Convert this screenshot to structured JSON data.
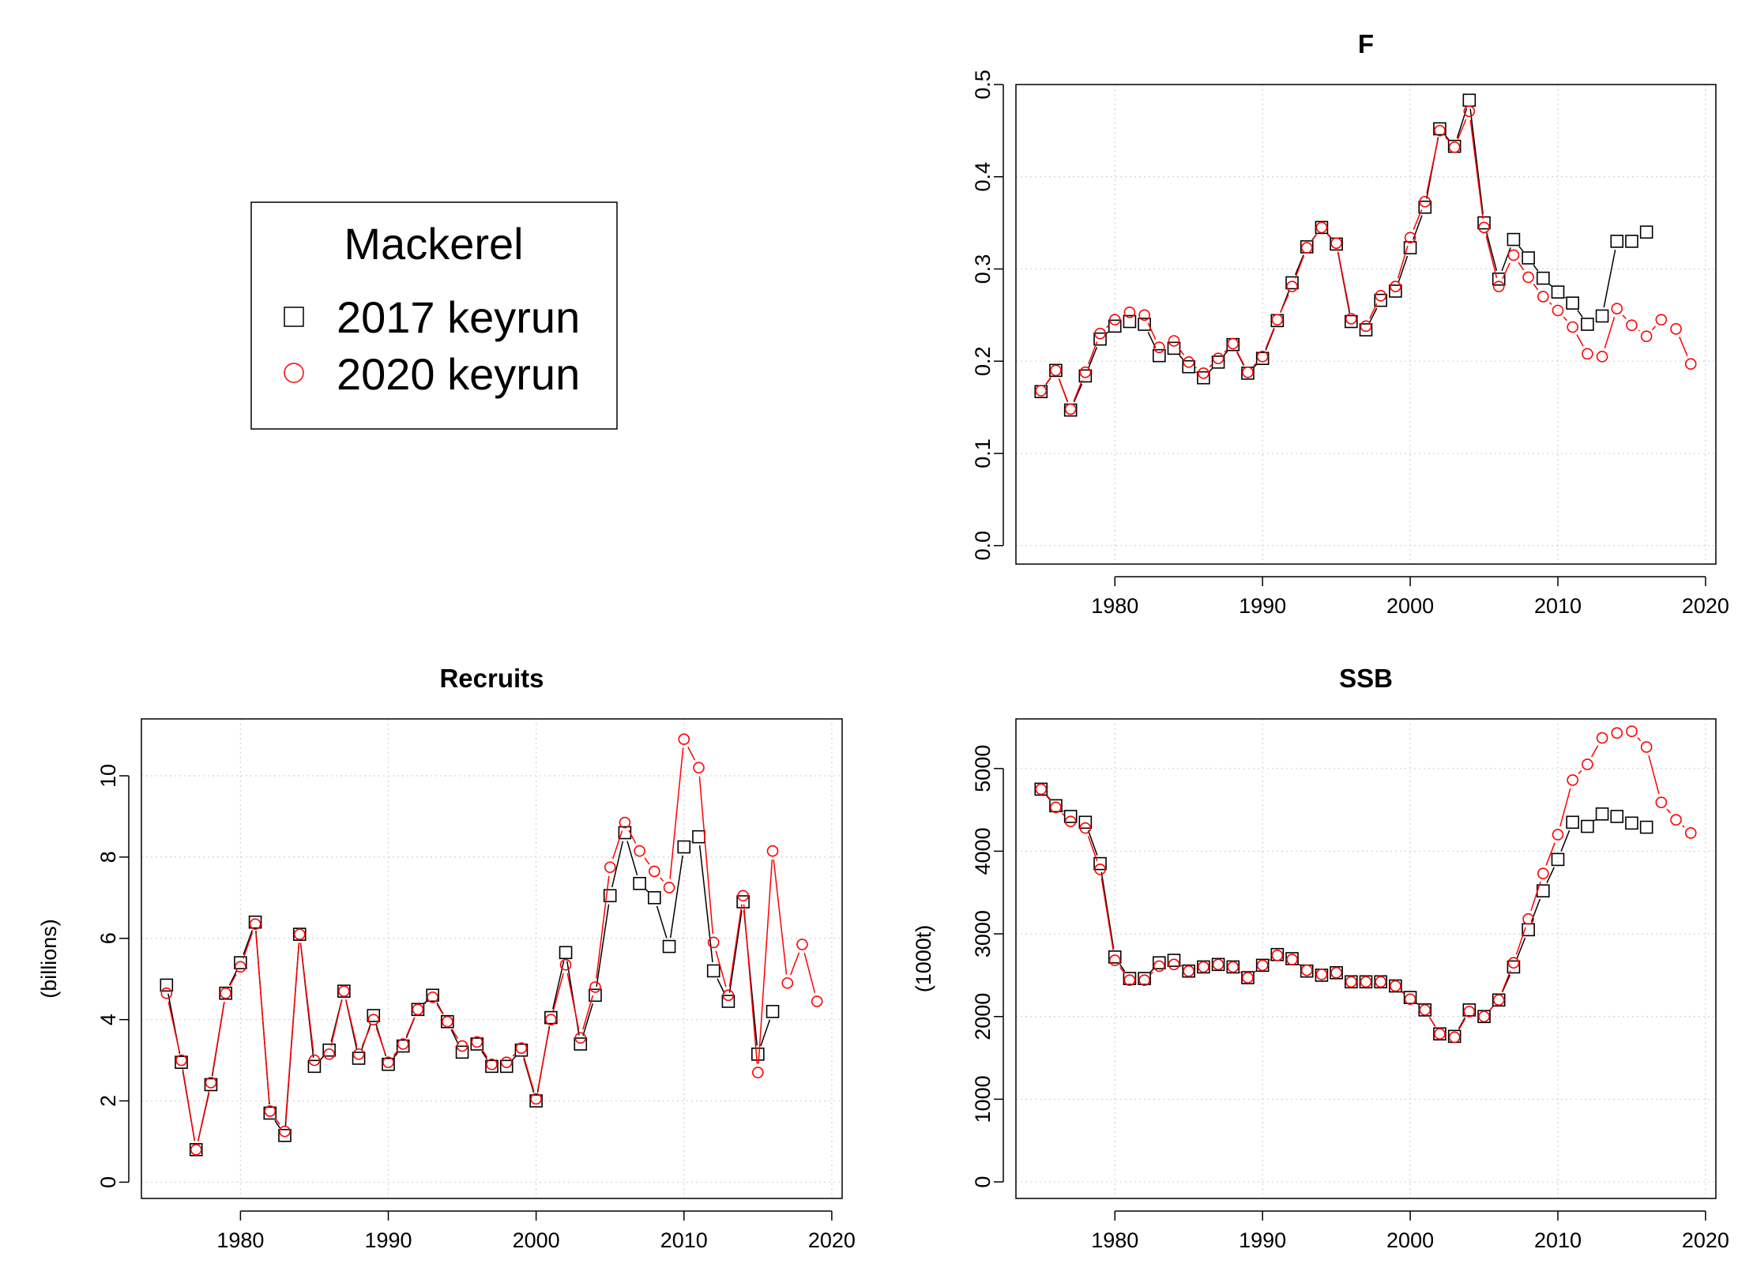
{
  "legend": {
    "title": "Mackerel",
    "entries": [
      {
        "label": "2017 keyrun",
        "symbol": "square",
        "color": "#000000"
      },
      {
        "label": "2020 keyrun",
        "symbol": "circle",
        "color": "#ff0000"
      }
    ]
  },
  "chart_data": [
    {
      "id": "F",
      "type": "line",
      "title": "F",
      "xlabel": "",
      "ylabel": "",
      "xlim": [
        1973.3,
        2020.7
      ],
      "ylim": [
        -0.02,
        0.5
      ],
      "xticks": [
        1980,
        1990,
        2000,
        2010,
        2020
      ],
      "yticks": [
        0.0,
        0.1,
        0.2,
        0.3,
        0.4,
        0.5
      ],
      "ytick_labels": [
        "0.0",
        "0.1",
        "0.2",
        "0.3",
        "0.4",
        "0.5"
      ],
      "grid": true,
      "series": [
        {
          "name": "2017 keyrun",
          "color": "#000000",
          "symbol": "square",
          "x": [
            1975,
            1976,
            1977,
            1978,
            1979,
            1980,
            1981,
            1982,
            1983,
            1984,
            1985,
            1986,
            1987,
            1988,
            1989,
            1990,
            1991,
            1992,
            1993,
            1994,
            1995,
            1996,
            1997,
            1998,
            1999,
            2000,
            2001,
            2002,
            2003,
            2004,
            2005,
            2006,
            2007,
            2008,
            2009,
            2010,
            2011,
            2012,
            2013,
            2014,
            2015,
            2016
          ],
          "values": [
            0.167,
            0.19,
            0.147,
            0.184,
            0.224,
            0.238,
            0.243,
            0.24,
            0.206,
            0.214,
            0.194,
            0.182,
            0.199,
            0.218,
            0.187,
            0.203,
            0.244,
            0.285,
            0.324,
            0.345,
            0.327,
            0.243,
            0.234,
            0.266,
            0.276,
            0.323,
            0.367,
            0.452,
            0.433,
            0.483,
            0.35,
            0.289,
            0.332,
            0.312,
            0.29,
            0.275,
            0.263,
            0.24,
            0.249,
            0.33,
            0.33,
            0.34
          ]
        },
        {
          "name": "2020 keyrun",
          "color": "#ff0000",
          "symbol": "circle",
          "x": [
            1975,
            1976,
            1977,
            1978,
            1979,
            1980,
            1981,
            1982,
            1983,
            1984,
            1985,
            1986,
            1987,
            1988,
            1989,
            1990,
            1991,
            1992,
            1993,
            1994,
            1995,
            1996,
            1997,
            1998,
            1999,
            2000,
            2001,
            2002,
            2003,
            2004,
            2005,
            2006,
            2007,
            2008,
            2009,
            2010,
            2011,
            2012,
            2013,
            2014,
            2015,
            2016,
            2017,
            2018,
            2019
          ],
          "values": [
            0.168,
            0.19,
            0.148,
            0.188,
            0.23,
            0.245,
            0.253,
            0.25,
            0.215,
            0.222,
            0.199,
            0.187,
            0.203,
            0.219,
            0.188,
            0.205,
            0.245,
            0.281,
            0.323,
            0.345,
            0.328,
            0.246,
            0.238,
            0.271,
            0.281,
            0.334,
            0.373,
            0.45,
            0.432,
            0.471,
            0.345,
            0.281,
            0.315,
            0.291,
            0.27,
            0.255,
            0.237,
            0.208,
            0.205,
            0.257,
            0.239,
            0.227,
            0.245,
            0.235,
            0.197
          ]
        }
      ]
    },
    {
      "id": "Recruits",
      "type": "line",
      "title": "Recruits",
      "xlabel": "",
      "ylabel": "(billions)",
      "xlim": [
        1973.3,
        2020.7
      ],
      "ylim": [
        -0.4,
        11.4
      ],
      "xticks": [
        1980,
        1990,
        2000,
        2010,
        2020
      ],
      "yticks": [
        0,
        2,
        4,
        6,
        8,
        10
      ],
      "ytick_labels": [
        "0",
        "2",
        "4",
        "6",
        "8",
        "10"
      ],
      "grid": true,
      "series": [
        {
          "name": "2017 keyrun",
          "color": "#000000",
          "symbol": "square",
          "x": [
            1975,
            1976,
            1977,
            1978,
            1979,
            1980,
            1981,
            1982,
            1983,
            1984,
            1985,
            1986,
            1987,
            1988,
            1989,
            1990,
            1991,
            1992,
            1993,
            1994,
            1995,
            1996,
            1997,
            1998,
            1999,
            2000,
            2001,
            2002,
            2003,
            2004,
            2005,
            2006,
            2007,
            2008,
            2009,
            2010,
            2011,
            2012,
            2013,
            2014,
            2015,
            2016
          ],
          "values": [
            4.85,
            2.95,
            0.8,
            2.4,
            4.65,
            5.4,
            6.4,
            1.7,
            1.15,
            6.1,
            2.85,
            3.25,
            4.7,
            3.05,
            4.1,
            2.9,
            3.35,
            4.25,
            4.6,
            3.95,
            3.2,
            3.4,
            2.85,
            2.85,
            3.25,
            2.0,
            4.05,
            5.65,
            3.4,
            4.6,
            7.05,
            8.6,
            7.35,
            7.0,
            5.8,
            8.25,
            8.5,
            5.2,
            4.45,
            6.9,
            3.15,
            4.2
          ]
        },
        {
          "name": "2020 keyrun",
          "color": "#ff0000",
          "symbol": "circle",
          "x": [
            1975,
            1976,
            1977,
            1978,
            1979,
            1980,
            1981,
            1982,
            1983,
            1984,
            1985,
            1986,
            1987,
            1988,
            1989,
            1990,
            1991,
            1992,
            1993,
            1994,
            1995,
            1996,
            1997,
            1998,
            1999,
            2000,
            2001,
            2002,
            2003,
            2004,
            2005,
            2006,
            2007,
            2008,
            2009,
            2010,
            2011,
            2012,
            2013,
            2014,
            2015,
            2016,
            2017,
            2018,
            2019
          ],
          "values": [
            4.65,
            3.0,
            0.8,
            2.45,
            4.65,
            5.3,
            6.35,
            1.75,
            1.25,
            6.1,
            3.0,
            3.15,
            4.7,
            3.15,
            4.0,
            2.95,
            3.4,
            4.25,
            4.55,
            3.95,
            3.35,
            3.45,
            2.9,
            2.95,
            3.3,
            2.05,
            4.0,
            5.35,
            3.55,
            4.8,
            7.75,
            8.85,
            8.15,
            7.65,
            7.25,
            10.9,
            10.2,
            5.9,
            4.6,
            7.05,
            2.7,
            8.15,
            4.9,
            5.85,
            4.45
          ]
        }
      ]
    },
    {
      "id": "SSB",
      "type": "line",
      "title": "SSB",
      "xlabel": "",
      "ylabel": "(1000t)",
      "xlim": [
        1973.3,
        2020.7
      ],
      "ylim": [
        -200,
        5600
      ],
      "xticks": [
        1980,
        1990,
        2000,
        2010,
        2020
      ],
      "yticks": [
        0,
        1000,
        2000,
        3000,
        4000,
        5000
      ],
      "ytick_labels": [
        "0",
        "1000",
        "2000",
        "3000",
        "4000",
        "5000"
      ],
      "grid": true,
      "series": [
        {
          "name": "2017 keyrun",
          "color": "#000000",
          "symbol": "square",
          "x": [
            1975,
            1976,
            1977,
            1978,
            1979,
            1980,
            1981,
            1982,
            1983,
            1984,
            1985,
            1986,
            1987,
            1988,
            1989,
            1990,
            1991,
            1992,
            1993,
            1994,
            1995,
            1996,
            1997,
            1998,
            1999,
            2000,
            2001,
            2002,
            2003,
            2004,
            2005,
            2006,
            2007,
            2008,
            2009,
            2010,
            2011,
            2012,
            2013,
            2014,
            2015,
            2016
          ],
          "values": [
            4750,
            4550,
            4420,
            4350,
            3850,
            2720,
            2460,
            2460,
            2650,
            2680,
            2550,
            2600,
            2630,
            2600,
            2470,
            2620,
            2750,
            2700,
            2550,
            2500,
            2530,
            2420,
            2420,
            2420,
            2370,
            2230,
            2080,
            1790,
            1760,
            2080,
            2000,
            2200,
            2600,
            3050,
            3520,
            3900,
            4350,
            4300,
            4450,
            4420,
            4340,
            4290
          ]
        },
        {
          "name": "2020 keyrun",
          "color": "#ff0000",
          "symbol": "circle",
          "x": [
            1975,
            1976,
            1977,
            1978,
            1979,
            1980,
            1981,
            1982,
            1983,
            1984,
            1985,
            1986,
            1987,
            1988,
            1989,
            1990,
            1991,
            1992,
            1993,
            1994,
            1995,
            1996,
            1997,
            1998,
            1999,
            2000,
            2001,
            2002,
            2003,
            2004,
            2005,
            2006,
            2007,
            2008,
            2009,
            2010,
            2011,
            2012,
            2013,
            2014,
            2015,
            2016,
            2017,
            2018,
            2019
          ],
          "values": [
            4750,
            4530,
            4360,
            4280,
            3780,
            2680,
            2440,
            2440,
            2610,
            2630,
            2550,
            2600,
            2630,
            2600,
            2470,
            2620,
            2740,
            2690,
            2560,
            2510,
            2530,
            2420,
            2420,
            2420,
            2370,
            2210,
            2080,
            1790,
            1750,
            2060,
            2000,
            2200,
            2650,
            3180,
            3730,
            4200,
            4860,
            5050,
            5370,
            5430,
            5450,
            5260,
            4590,
            4380,
            4220
          ]
        }
      ]
    }
  ]
}
